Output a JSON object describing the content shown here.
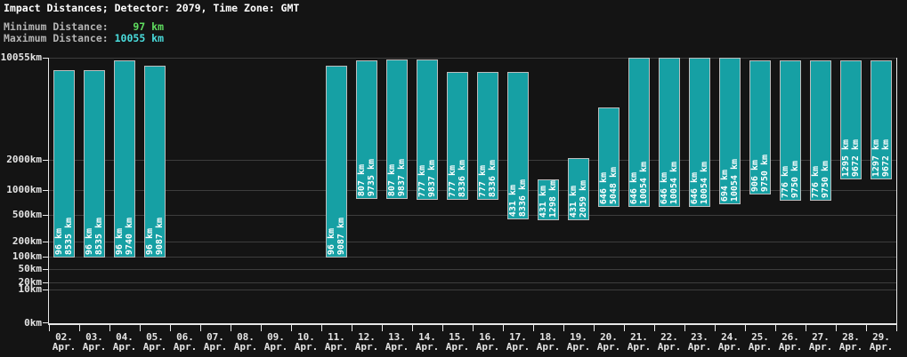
{
  "title": "Impact Distances; Detector: 2079, Time Zone: GMT",
  "summary": {
    "min_label": "Minimum Distance:",
    "min_value": "97 km",
    "max_label": "Maximum Distance:",
    "max_value": "10055 km"
  },
  "colors": {
    "background": "#141414",
    "grid_line": "#3d3d3d",
    "axis_line": "#e8e8e8",
    "tick_text": "#e4e4e4",
    "bar_fill": "#16a0a4",
    "bar_border": "#bdbdbd",
    "bar_label_text": "#ffffff",
    "summary_label_gray": "#b4b4b4",
    "min_value_green": "#5fdd5f",
    "max_value_cyan": "#4adcdc",
    "title_text": "#ffffff"
  },
  "chart_data": {
    "type": "bar",
    "subtype": "floating-range-columns",
    "title": "Impact Distances; Detector: 2079, Time Zone: GMT",
    "unit": "km",
    "legend": "none",
    "grid": "horizontal",
    "y_axis": {
      "scale": "power",
      "range_km": [
        0,
        10055
      ],
      "ticks": [
        {
          "label": "10055km",
          "value": 10055
        },
        {
          "label": "2000km",
          "value": 2000
        },
        {
          "label": "1000km",
          "value": 1000
        },
        {
          "label": "500km",
          "value": 500
        },
        {
          "label": "200km",
          "value": 200
        },
        {
          "label": "100km",
          "value": 100
        },
        {
          "label": "50km",
          "value": 50
        },
        {
          "label": "20km",
          "value": 20
        },
        {
          "label": "10km",
          "value": 10
        },
        {
          "label": "0km",
          "value": 0
        }
      ]
    },
    "days": [
      {
        "day": "02.",
        "month": "Apr.",
        "min_km": 96,
        "max_km": 8535
      },
      {
        "day": "03.",
        "month": "Apr.",
        "min_km": 96,
        "max_km": 8535
      },
      {
        "day": "04.",
        "month": "Apr.",
        "min_km": 96,
        "max_km": 9740
      },
      {
        "day": "05.",
        "month": "Apr.",
        "min_km": 96,
        "max_km": 9087
      },
      {
        "day": "06.",
        "month": "Apr.",
        "min_km": null,
        "max_km": null
      },
      {
        "day": "07.",
        "month": "Apr.",
        "min_km": null,
        "max_km": null
      },
      {
        "day": "08.",
        "month": "Apr.",
        "min_km": null,
        "max_km": null
      },
      {
        "day": "09.",
        "month": "Apr.",
        "min_km": null,
        "max_km": null
      },
      {
        "day": "10.",
        "month": "Apr.",
        "min_km": null,
        "max_km": null
      },
      {
        "day": "11.",
        "month": "Apr.",
        "min_km": 96,
        "max_km": 9087
      },
      {
        "day": "12.",
        "month": "Apr.",
        "min_km": 807,
        "max_km": 9735
      },
      {
        "day": "13.",
        "month": "Apr.",
        "min_km": 807,
        "max_km": 9837
      },
      {
        "day": "14.",
        "month": "Apr.",
        "min_km": 777,
        "max_km": 9837
      },
      {
        "day": "15.",
        "month": "Apr.",
        "min_km": 777,
        "max_km": 8336
      },
      {
        "day": "16.",
        "month": "Apr.",
        "min_km": 777,
        "max_km": 8336
      },
      {
        "day": "17.",
        "month": "Apr.",
        "min_km": 431,
        "max_km": 8336
      },
      {
        "day": "18.",
        "month": "Apr.",
        "min_km": 431,
        "max_km": 1298
      },
      {
        "day": "19.",
        "month": "Apr.",
        "min_km": 431,
        "max_km": 2059
      },
      {
        "day": "20.",
        "month": "Apr.",
        "min_km": 646,
        "max_km": 5048
      },
      {
        "day": "21.",
        "month": "Apr.",
        "min_km": 646,
        "max_km": 10054
      },
      {
        "day": "22.",
        "month": "Apr.",
        "min_km": 646,
        "max_km": 10054
      },
      {
        "day": "23.",
        "month": "Apr.",
        "min_km": 646,
        "max_km": 10054
      },
      {
        "day": "24.",
        "month": "Apr.",
        "min_km": 694,
        "max_km": 10054
      },
      {
        "day": "25.",
        "month": "Apr.",
        "min_km": 906,
        "max_km": 9750
      },
      {
        "day": "26.",
        "month": "Apr.",
        "min_km": 776,
        "max_km": 9750
      },
      {
        "day": "27.",
        "month": "Apr.",
        "min_km": 776,
        "max_km": 9750
      },
      {
        "day": "28.",
        "month": "Apr.",
        "min_km": 1295,
        "max_km": 9672
      },
      {
        "day": "29.",
        "month": "Apr.",
        "min_km": 1297,
        "max_km": 9672
      }
    ]
  }
}
